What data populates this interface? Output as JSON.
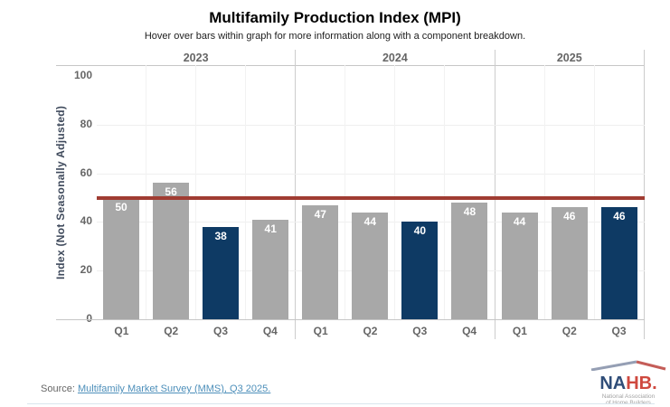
{
  "chart_data": {
    "type": "bar",
    "title": "Multifamily Production Index (MPI)",
    "subtitle": "Hover over bars within graph for more information along with a component breakdown.",
    "ylabel": "Index (Not Seasonally Adjusted)",
    "ylim": [
      0,
      105
    ],
    "yticks": [
      0,
      20,
      40,
      60,
      80,
      100
    ],
    "grid": true,
    "legend_position": "none",
    "reference_line": {
      "value": 50,
      "color": "#a03c32"
    },
    "bar_colors": {
      "default": "#a8a8a8",
      "highlight": "#0e3a64"
    },
    "groups": [
      {
        "year": "2023",
        "bars": [
          {
            "quarter": "Q1",
            "value": 50,
            "highlight": false
          },
          {
            "quarter": "Q2",
            "value": 56,
            "highlight": false
          },
          {
            "quarter": "Q3",
            "value": 38,
            "highlight": true
          },
          {
            "quarter": "Q4",
            "value": 41,
            "highlight": false
          }
        ]
      },
      {
        "year": "2024",
        "bars": [
          {
            "quarter": "Q1",
            "value": 47,
            "highlight": false
          },
          {
            "quarter": "Q2",
            "value": 44,
            "highlight": false
          },
          {
            "quarter": "Q3",
            "value": 40,
            "highlight": true
          },
          {
            "quarter": "Q4",
            "value": 48,
            "highlight": false
          }
        ]
      },
      {
        "year": "2025",
        "bars": [
          {
            "quarter": "Q1",
            "value": 44,
            "highlight": false
          },
          {
            "quarter": "Q2",
            "value": 46,
            "highlight": false
          },
          {
            "quarter": "Q3",
            "value": 46,
            "highlight": true
          }
        ]
      }
    ]
  },
  "source": {
    "prefix": "Source: ",
    "link_text": "Multifamily Market Survey (MMS), Q3 2025."
  },
  "logo": {
    "name_primary": "NA",
    "name_secondary": "HB.",
    "tagline_line1": "National Association",
    "tagline_line2": "of Home Builders"
  }
}
